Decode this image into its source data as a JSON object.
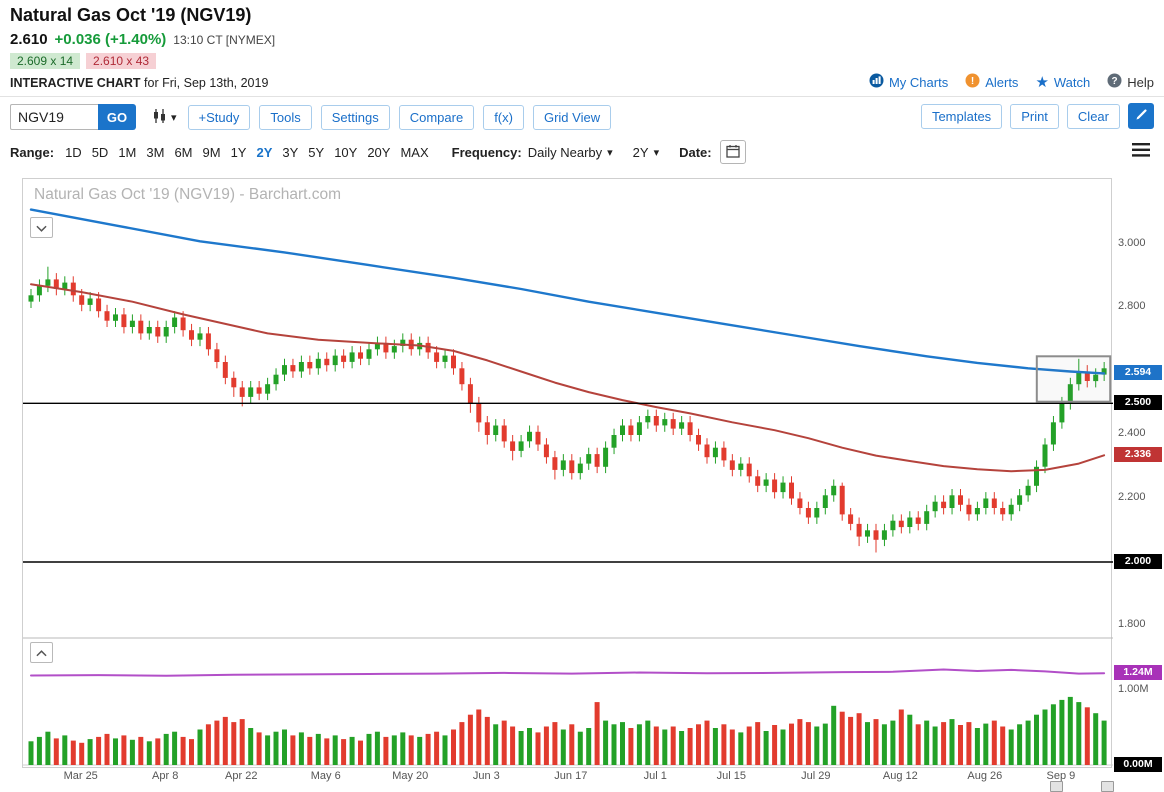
{
  "header": {
    "title": "Natural Gas Oct '19 (NGV19)",
    "last_price": "2.610",
    "change": "+0.036 (+1.40%)",
    "quote_time": "13:10 CT [NYMEX]",
    "bid": "2.609 x 14",
    "ask": "2.610 x 43",
    "page_label": "INTERACTIVE CHART",
    "page_label_suffix": " for Fri, Sep 13th, 2019",
    "links": [
      {
        "label": "My Charts",
        "icon": "my-charts-icon",
        "color": "#1a6fc9"
      },
      {
        "label": "Alerts",
        "icon": "alerts-icon",
        "color": "#1a6fc9"
      },
      {
        "label": "Watch",
        "icon": "watch-star-icon",
        "color": "#1a6fc9"
      },
      {
        "label": "Help",
        "icon": "help-icon",
        "color": "#333333"
      }
    ]
  },
  "toolbar": {
    "symbol_value": "NGV19",
    "go_label": "GO",
    "buttons": [
      "+Study",
      "Tools",
      "Settings",
      "Compare",
      "f(x)",
      "Grid View"
    ],
    "right_buttons": [
      "Templates",
      "Print",
      "Clear"
    ]
  },
  "range_bar": {
    "range_label": "Range:",
    "options": [
      "1D",
      "5D",
      "1M",
      "3M",
      "6M",
      "9M",
      "1Y",
      "2Y",
      "3Y",
      "5Y",
      "10Y",
      "20Y",
      "MAX"
    ],
    "active_option": "2Y",
    "frequency_label": "Frequency:",
    "frequency_value": "Daily Nearby",
    "period_value": "2Y",
    "date_label": "Date:"
  },
  "chart_data": {
    "type": "candlestick",
    "title": "Natural Gas Oct '19 (NGV19) - Barchart.com",
    "symbol": "NGV19",
    "y_range": [
      1.76,
      3.21
    ],
    "volume_range_m": [
      0,
      1.69
    ],
    "colors": {
      "up": "#23a127",
      "down": "#e23b2e",
      "ma_blue": "#1e78cc",
      "ma_red": "#b5433c",
      "open_interest": "#b24fc8",
      "hline": "#000000",
      "box": "#8c8c8c"
    },
    "y_ticks": [
      {
        "label": "3.000",
        "value": 3.0
      },
      {
        "label": "2.800",
        "value": 2.8
      },
      {
        "label": "2.400",
        "value": 2.4
      },
      {
        "label": "2.200",
        "value": 2.2
      },
      {
        "label": "1.800",
        "value": 1.8
      }
    ],
    "volume_ticks": [
      {
        "label": "1.00M",
        "value": 1.0
      }
    ],
    "badges": [
      {
        "label": "2.594",
        "value": 2.594,
        "axis": "price",
        "color": "#1e73c8"
      },
      {
        "label": "2.500",
        "value": 2.5,
        "axis": "price",
        "color": "#000000"
      },
      {
        "label": "2.336",
        "value": 2.336,
        "axis": "price",
        "color": "#c03434"
      },
      {
        "label": "2.000",
        "value": 2.0,
        "axis": "price",
        "color": "#000000"
      },
      {
        "label": "1.24M",
        "value": 1.24,
        "axis": "volume",
        "color": "#a832b8"
      },
      {
        "label": "0.00M",
        "value": 0.0,
        "axis": "volume",
        "color": "#000000"
      }
    ],
    "x_labels": [
      {
        "label": "Mar 25",
        "index": 6
      },
      {
        "label": "Apr 8",
        "index": 16
      },
      {
        "label": "Apr 22",
        "index": 25
      },
      {
        "label": "May 6",
        "index": 35
      },
      {
        "label": "May 20",
        "index": 45
      },
      {
        "label": "Jun 3",
        "index": 54
      },
      {
        "label": "Jun 17",
        "index": 64
      },
      {
        "label": "Jul 1",
        "index": 74
      },
      {
        "label": "Jul 15",
        "index": 83
      },
      {
        "label": "Jul 29",
        "index": 93
      },
      {
        "label": "Aug 12",
        "index": 103
      },
      {
        "label": "Aug 26",
        "index": 113
      },
      {
        "label": "Sep 9",
        "index": 122
      }
    ],
    "annotations": {
      "hlines": [
        2.5,
        2.0
      ],
      "box": {
        "start_index": 119.5,
        "end_index": 127,
        "top": 2.648,
        "bottom": 2.505
      }
    },
    "candles": [
      [
        2.82,
        2.86,
        2.8,
        2.84
      ],
      [
        2.84,
        2.89,
        2.82,
        2.87
      ],
      [
        2.87,
        2.93,
        2.85,
        2.89
      ],
      [
        2.89,
        2.91,
        2.84,
        2.86
      ],
      [
        2.86,
        2.9,
        2.84,
        2.88
      ],
      [
        2.88,
        2.9,
        2.82,
        2.84
      ],
      [
        2.84,
        2.86,
        2.79,
        2.81
      ],
      [
        2.81,
        2.85,
        2.79,
        2.83
      ],
      [
        2.83,
        2.85,
        2.77,
        2.79
      ],
      [
        2.79,
        2.81,
        2.74,
        2.76
      ],
      [
        2.76,
        2.8,
        2.74,
        2.78
      ],
      [
        2.78,
        2.8,
        2.72,
        2.74
      ],
      [
        2.74,
        2.78,
        2.72,
        2.76
      ],
      [
        2.76,
        2.78,
        2.7,
        2.72
      ],
      [
        2.72,
        2.76,
        2.7,
        2.74
      ],
      [
        2.74,
        2.76,
        2.69,
        2.71
      ],
      [
        2.71,
        2.76,
        2.69,
        2.74
      ],
      [
        2.74,
        2.79,
        2.72,
        2.77
      ],
      [
        2.77,
        2.79,
        2.71,
        2.73
      ],
      [
        2.73,
        2.75,
        2.68,
        2.7
      ],
      [
        2.7,
        2.74,
        2.68,
        2.72
      ],
      [
        2.72,
        2.74,
        2.65,
        2.67
      ],
      [
        2.67,
        2.69,
        2.61,
        2.63
      ],
      [
        2.63,
        2.65,
        2.56,
        2.58
      ],
      [
        2.58,
        2.6,
        2.52,
        2.55
      ],
      [
        2.55,
        2.57,
        2.49,
        2.52
      ],
      [
        2.52,
        2.57,
        2.5,
        2.55
      ],
      [
        2.55,
        2.57,
        2.51,
        2.53
      ],
      [
        2.53,
        2.58,
        2.51,
        2.56
      ],
      [
        2.56,
        2.61,
        2.54,
        2.59
      ],
      [
        2.59,
        2.64,
        2.57,
        2.62
      ],
      [
        2.62,
        2.64,
        2.58,
        2.6
      ],
      [
        2.6,
        2.65,
        2.58,
        2.63
      ],
      [
        2.63,
        2.65,
        2.59,
        2.61
      ],
      [
        2.61,
        2.66,
        2.59,
        2.64
      ],
      [
        2.64,
        2.66,
        2.6,
        2.62
      ],
      [
        2.62,
        2.67,
        2.6,
        2.65
      ],
      [
        2.65,
        2.67,
        2.61,
        2.63
      ],
      [
        2.63,
        2.68,
        2.61,
        2.66
      ],
      [
        2.66,
        2.68,
        2.62,
        2.64
      ],
      [
        2.64,
        2.69,
        2.62,
        2.67
      ],
      [
        2.67,
        2.71,
        2.65,
        2.69
      ],
      [
        2.69,
        2.71,
        2.64,
        2.66
      ],
      [
        2.66,
        2.7,
        2.64,
        2.68
      ],
      [
        2.68,
        2.72,
        2.66,
        2.7
      ],
      [
        2.7,
        2.72,
        2.65,
        2.67
      ],
      [
        2.67,
        2.71,
        2.65,
        2.69
      ],
      [
        2.69,
        2.71,
        2.64,
        2.66
      ],
      [
        2.66,
        2.68,
        2.61,
        2.63
      ],
      [
        2.63,
        2.67,
        2.61,
        2.65
      ],
      [
        2.65,
        2.67,
        2.59,
        2.61
      ],
      [
        2.61,
        2.63,
        2.54,
        2.56
      ],
      [
        2.56,
        2.58,
        2.47,
        2.5
      ],
      [
        2.5,
        2.52,
        2.41,
        2.44
      ],
      [
        2.44,
        2.46,
        2.37,
        2.4
      ],
      [
        2.4,
        2.45,
        2.38,
        2.43
      ],
      [
        2.43,
        2.45,
        2.36,
        2.38
      ],
      [
        2.38,
        2.4,
        2.32,
        2.35
      ],
      [
        2.35,
        2.4,
        2.33,
        2.38
      ],
      [
        2.38,
        2.43,
        2.36,
        2.41
      ],
      [
        2.41,
        2.43,
        2.35,
        2.37
      ],
      [
        2.37,
        2.39,
        2.31,
        2.33
      ],
      [
        2.33,
        2.35,
        2.26,
        2.29
      ],
      [
        2.29,
        2.34,
        2.27,
        2.32
      ],
      [
        2.32,
        2.34,
        2.26,
        2.28
      ],
      [
        2.28,
        2.33,
        2.26,
        2.31
      ],
      [
        2.31,
        2.36,
        2.29,
        2.34
      ],
      [
        2.34,
        2.36,
        2.28,
        2.3
      ],
      [
        2.3,
        2.38,
        2.28,
        2.36
      ],
      [
        2.36,
        2.42,
        2.34,
        2.4
      ],
      [
        2.4,
        2.45,
        2.38,
        2.43
      ],
      [
        2.43,
        2.45,
        2.38,
        2.4
      ],
      [
        2.4,
        2.46,
        2.38,
        2.44
      ],
      [
        2.44,
        2.48,
        2.42,
        2.46
      ],
      [
        2.46,
        2.48,
        2.41,
        2.43
      ],
      [
        2.43,
        2.47,
        2.41,
        2.45
      ],
      [
        2.45,
        2.47,
        2.4,
        2.42
      ],
      [
        2.42,
        2.46,
        2.4,
        2.44
      ],
      [
        2.44,
        2.46,
        2.38,
        2.4
      ],
      [
        2.4,
        2.42,
        2.35,
        2.37
      ],
      [
        2.37,
        2.39,
        2.31,
        2.33
      ],
      [
        2.33,
        2.38,
        2.31,
        2.36
      ],
      [
        2.36,
        2.38,
        2.3,
        2.32
      ],
      [
        2.32,
        2.34,
        2.27,
        2.29
      ],
      [
        2.29,
        2.33,
        2.27,
        2.31
      ],
      [
        2.31,
        2.33,
        2.25,
        2.27
      ],
      [
        2.27,
        2.29,
        2.22,
        2.24
      ],
      [
        2.24,
        2.28,
        2.22,
        2.26
      ],
      [
        2.26,
        2.28,
        2.2,
        2.22
      ],
      [
        2.22,
        2.27,
        2.2,
        2.25
      ],
      [
        2.25,
        2.27,
        2.18,
        2.2
      ],
      [
        2.2,
        2.22,
        2.15,
        2.17
      ],
      [
        2.17,
        2.19,
        2.12,
        2.14
      ],
      [
        2.14,
        2.19,
        2.12,
        2.17
      ],
      [
        2.17,
        2.23,
        2.15,
        2.21
      ],
      [
        2.21,
        2.26,
        2.19,
        2.24
      ],
      [
        2.24,
        2.25,
        2.13,
        2.15
      ],
      [
        2.15,
        2.17,
        2.1,
        2.12
      ],
      [
        2.12,
        2.14,
        2.05,
        2.08
      ],
      [
        2.08,
        2.12,
        2.06,
        2.1
      ],
      [
        2.1,
        2.12,
        2.03,
        2.07
      ],
      [
        2.07,
        2.12,
        2.05,
        2.1
      ],
      [
        2.1,
        2.15,
        2.08,
        2.13
      ],
      [
        2.13,
        2.15,
        2.09,
        2.11
      ],
      [
        2.11,
        2.16,
        2.09,
        2.14
      ],
      [
        2.14,
        2.16,
        2.1,
        2.12
      ],
      [
        2.12,
        2.18,
        2.1,
        2.16
      ],
      [
        2.16,
        2.21,
        2.14,
        2.19
      ],
      [
        2.19,
        2.21,
        2.15,
        2.17
      ],
      [
        2.17,
        2.23,
        2.15,
        2.21
      ],
      [
        2.21,
        2.23,
        2.16,
        2.18
      ],
      [
        2.18,
        2.2,
        2.13,
        2.15
      ],
      [
        2.15,
        2.19,
        2.13,
        2.17
      ],
      [
        2.17,
        2.22,
        2.15,
        2.2
      ],
      [
        2.2,
        2.22,
        2.15,
        2.17
      ],
      [
        2.17,
        2.19,
        2.13,
        2.15
      ],
      [
        2.15,
        2.2,
        2.13,
        2.18
      ],
      [
        2.18,
        2.23,
        2.16,
        2.21
      ],
      [
        2.21,
        2.26,
        2.19,
        2.24
      ],
      [
        2.24,
        2.32,
        2.22,
        2.3
      ],
      [
        2.3,
        2.39,
        2.28,
        2.37
      ],
      [
        2.37,
        2.46,
        2.35,
        2.44
      ],
      [
        2.44,
        2.52,
        2.42,
        2.5
      ],
      [
        2.5,
        2.58,
        2.48,
        2.56
      ],
      [
        2.56,
        2.64,
        2.54,
        2.6
      ],
      [
        2.6,
        2.62,
        2.55,
        2.57
      ],
      [
        2.57,
        2.61,
        2.55,
        2.59
      ],
      [
        2.59,
        2.63,
        2.57,
        2.61
      ]
    ],
    "volumes": [
      0.32,
      0.38,
      0.45,
      0.36,
      0.4,
      0.33,
      0.3,
      0.35,
      0.38,
      0.42,
      0.36,
      0.4,
      0.34,
      0.38,
      0.32,
      0.36,
      0.42,
      0.45,
      0.38,
      0.35,
      0.48,
      0.55,
      0.6,
      0.65,
      0.58,
      0.62,
      0.5,
      0.44,
      0.4,
      0.45,
      0.48,
      0.4,
      0.44,
      0.38,
      0.42,
      0.36,
      0.4,
      0.35,
      0.38,
      0.33,
      0.42,
      0.45,
      0.38,
      0.4,
      0.44,
      0.4,
      0.38,
      0.42,
      0.45,
      0.4,
      0.48,
      0.58,
      0.68,
      0.75,
      0.65,
      0.55,
      0.6,
      0.52,
      0.46,
      0.5,
      0.44,
      0.52,
      0.58,
      0.48,
      0.55,
      0.45,
      0.5,
      0.85,
      0.6,
      0.55,
      0.58,
      0.5,
      0.55,
      0.6,
      0.52,
      0.48,
      0.52,
      0.46,
      0.5,
      0.55,
      0.6,
      0.5,
      0.55,
      0.48,
      0.44,
      0.52,
      0.58,
      0.46,
      0.54,
      0.48,
      0.56,
      0.62,
      0.58,
      0.52,
      0.56,
      0.8,
      0.72,
      0.65,
      0.7,
      0.58,
      0.62,
      0.55,
      0.6,
      0.75,
      0.68,
      0.55,
      0.6,
      0.52,
      0.58,
      0.62,
      0.54,
      0.58,
      0.5,
      0.56,
      0.6,
      0.52,
      0.48,
      0.55,
      0.6,
      0.68,
      0.75,
      0.82,
      0.88,
      0.92,
      0.85,
      0.78,
      0.7,
      0.6
    ],
    "ma_blue": [
      [
        0,
        3.11
      ],
      [
        10,
        3.06
      ],
      [
        20,
        3.01
      ],
      [
        30,
        2.975
      ],
      [
        40,
        2.935
      ],
      [
        50,
        2.895
      ],
      [
        58,
        2.86
      ],
      [
        66,
        2.82
      ],
      [
        74,
        2.785
      ],
      [
        82,
        2.75
      ],
      [
        90,
        2.715
      ],
      [
        98,
        2.68
      ],
      [
        106,
        2.648
      ],
      [
        112,
        2.627
      ],
      [
        118,
        2.61
      ],
      [
        123,
        2.6
      ],
      [
        127,
        2.594
      ]
    ],
    "ma_red": [
      [
        0,
        2.875
      ],
      [
        6,
        2.85
      ],
      [
        12,
        2.82
      ],
      [
        18,
        2.78
      ],
      [
        23,
        2.75
      ],
      [
        28,
        2.72
      ],
      [
        34,
        2.7
      ],
      [
        40,
        2.69
      ],
      [
        46,
        2.682
      ],
      [
        50,
        2.665
      ],
      [
        54,
        2.635
      ],
      [
        58,
        2.6
      ],
      [
        62,
        2.565
      ],
      [
        66,
        2.535
      ],
      [
        70,
        2.51
      ],
      [
        74,
        2.488
      ],
      [
        78,
        2.468
      ],
      [
        83,
        2.44
      ],
      [
        88,
        2.415
      ],
      [
        92,
        2.39
      ],
      [
        96,
        2.36
      ],
      [
        100,
        2.335
      ],
      [
        104,
        2.318
      ],
      [
        108,
        2.302
      ],
      [
        112,
        2.292
      ],
      [
        116,
        2.286
      ],
      [
        120,
        2.29
      ],
      [
        124,
        2.31
      ],
      [
        127,
        2.336
      ]
    ],
    "open_interest": [
      [
        0,
        1.21
      ],
      [
        8,
        1.215
      ],
      [
        16,
        1.205
      ],
      [
        24,
        1.22
      ],
      [
        32,
        1.225
      ],
      [
        40,
        1.23
      ],
      [
        48,
        1.235
      ],
      [
        56,
        1.245
      ],
      [
        64,
        1.235
      ],
      [
        72,
        1.25
      ],
      [
        80,
        1.24
      ],
      [
        88,
        1.245
      ],
      [
        96,
        1.255
      ],
      [
        102,
        1.26
      ],
      [
        108,
        1.29
      ],
      [
        112,
        1.27
      ],
      [
        116,
        1.285
      ],
      [
        120,
        1.265
      ],
      [
        124,
        1.235
      ],
      [
        127,
        1.24
      ]
    ]
  }
}
